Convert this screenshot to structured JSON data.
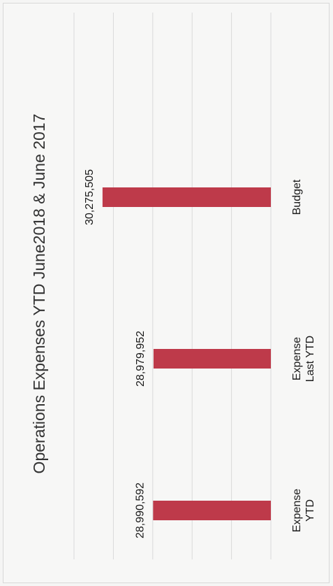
{
  "chart_data": {
    "type": "bar",
    "orientation": "vertical",
    "title": "Operations Expenses YTD June2018 & June 2017",
    "categories": [
      [
        "Expense",
        "YTD"
      ],
      [
        "Expense",
        "Last YTD"
      ],
      [
        "Budget"
      ]
    ],
    "values": [
      28990592,
      28979952,
      30275505
    ],
    "data_labels": [
      "28,990,592",
      "28,979,952",
      "30,275,505"
    ],
    "ylim": [
      26000000,
      31000000
    ],
    "grid": true,
    "bar_color": "#be3a4a"
  }
}
